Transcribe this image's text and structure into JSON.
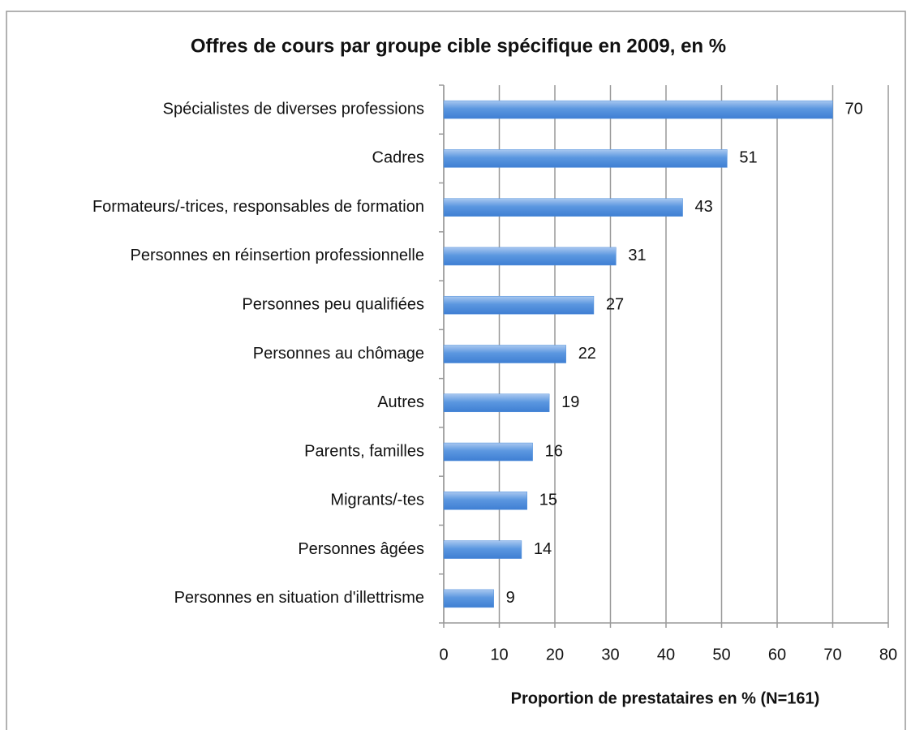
{
  "chart_data": {
    "type": "bar",
    "orientation": "horizontal",
    "title": "Offres de cours par groupe cible spécifique en 2009, en %",
    "xlabel": "Proportion de prestataires en % (N=161)",
    "categories": [
      "Spécialistes de diverses professions",
      "Cadres",
      "Formateurs/-trices, responsables de formation",
      "Personnes en réinsertion professionnelle",
      "Personnes peu qualifiées",
      "Personnes au chômage",
      "Autres",
      "Parents, familles",
      "Migrants/-tes",
      "Personnes âgées",
      "Personnes en situation d'illettrisme"
    ],
    "values": [
      70,
      51,
      43,
      31,
      27,
      22,
      19,
      16,
      15,
      14,
      9
    ],
    "color": "#4f8fdc",
    "xlim": [
      0,
      80
    ],
    "xticks": [
      0,
      10,
      20,
      30,
      40,
      50,
      60,
      70,
      80
    ],
    "grid": true
  }
}
